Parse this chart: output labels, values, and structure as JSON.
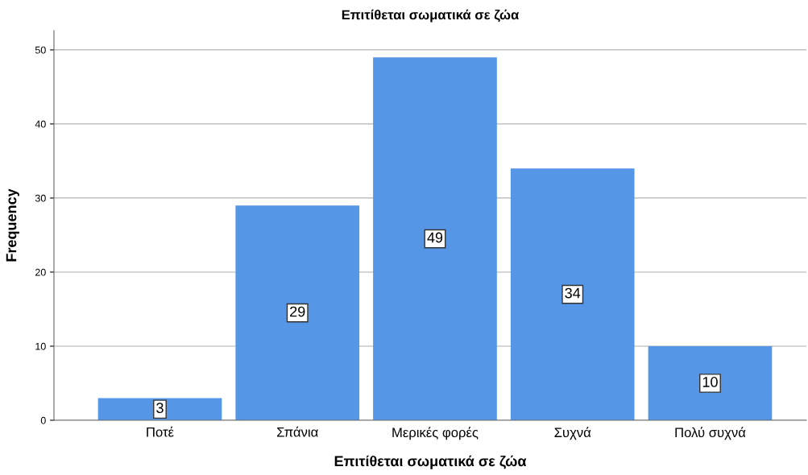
{
  "chart_data": {
    "type": "bar",
    "title": "Επιτίθεται σωματικά σε ζώα",
    "xlabel": "Επιτίθεται σωματικά σε ζώα",
    "ylabel": "Frequency",
    "categories": [
      "Ποτέ",
      "Σπάνια",
      "Μερικές φορές",
      "Συχνά",
      "Πολύ συχνά"
    ],
    "values": [
      3,
      29,
      49,
      34,
      10
    ],
    "color": "#5596e6",
    "ylim": [
      0,
      52.6
    ],
    "yticks": [
      0,
      10,
      20,
      30,
      40,
      50
    ],
    "grid": "y",
    "data_labels": true,
    "legend": false
  }
}
